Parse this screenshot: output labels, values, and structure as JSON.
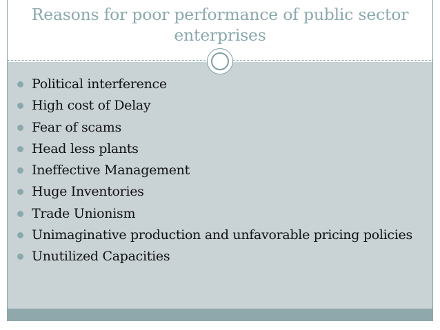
{
  "slide": {
    "title": "Reasons for poor performance of public sector enterprises",
    "bullets": [
      "Political interference",
      "High cost of Delay",
      "Fear of scams",
      "Head less plants",
      "Ineffective Management",
      "Huge Inventories",
      "Trade Unionism",
      "Unimaginative production and unfavorable pricing policies",
      "Unutilized Capacities"
    ],
    "bullet_icon": "circle-bullet-icon",
    "decoration_icon": "double-circle-icon"
  },
  "colors": {
    "title": "#8aa9ad",
    "content_background": "#c9d3d6",
    "bottom_band": "#8fa8ab",
    "bullet": "#8aa9ad",
    "text": "#111111"
  }
}
